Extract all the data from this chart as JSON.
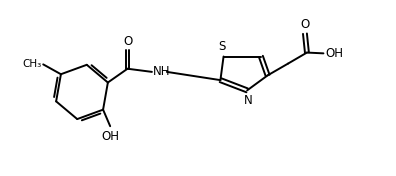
{
  "background_color": "#ffffff",
  "line_color": "#000000",
  "line_width": 1.4,
  "font_size": 7.5,
  "figsize": [
    3.96,
    1.76
  ],
  "dpi": 100,
  "xlim": [
    0,
    10
  ],
  "ylim": [
    0,
    4.4
  ]
}
